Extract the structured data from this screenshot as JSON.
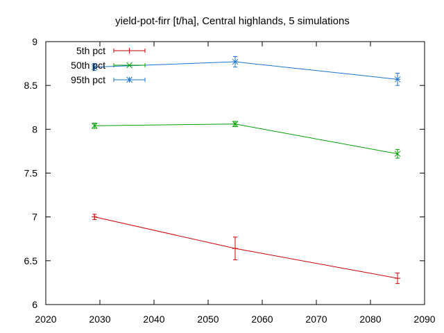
{
  "chart_data": {
    "type": "line",
    "title": "yield-pot-firr [t/ha], Central highlands, 5 simulations",
    "xlabel": "",
    "ylabel": "",
    "xlim": [
      2020,
      2090
    ],
    "ylim": [
      6,
      9
    ],
    "xticks": [
      "2020",
      "2030",
      "2040",
      "2050",
      "2060",
      "2070",
      "2080",
      "2090"
    ],
    "yticks": [
      "6",
      "6.5",
      "7",
      "7.5",
      "8",
      "8.5",
      "9"
    ],
    "grid": false,
    "legend_position": "top-left",
    "error_bars": true,
    "series": [
      {
        "name": "5th pct",
        "color": "#cc0000",
        "marker": "plus",
        "points": [
          {
            "x": 2029,
            "y": 7.0,
            "err": 0.03
          },
          {
            "x": 2055,
            "y": 6.64,
            "err": 0.13
          },
          {
            "x": 2085,
            "y": 6.3,
            "err": 0.06
          }
        ]
      },
      {
        "name": "50th pct",
        "color": "#00a000",
        "marker": "cross",
        "points": [
          {
            "x": 2029,
            "y": 8.04,
            "err": 0.03
          },
          {
            "x": 2055,
            "y": 8.06,
            "err": 0.03
          },
          {
            "x": 2085,
            "y": 7.72,
            "err": 0.05
          }
        ]
      },
      {
        "name": "95th pct",
        "color": "#1a75cf",
        "marker": "star",
        "points": [
          {
            "x": 2029,
            "y": 8.71,
            "err": 0.04
          },
          {
            "x": 2055,
            "y": 8.77,
            "err": 0.06
          },
          {
            "x": 2085,
            "y": 8.57,
            "err": 0.07
          }
        ]
      }
    ]
  }
}
